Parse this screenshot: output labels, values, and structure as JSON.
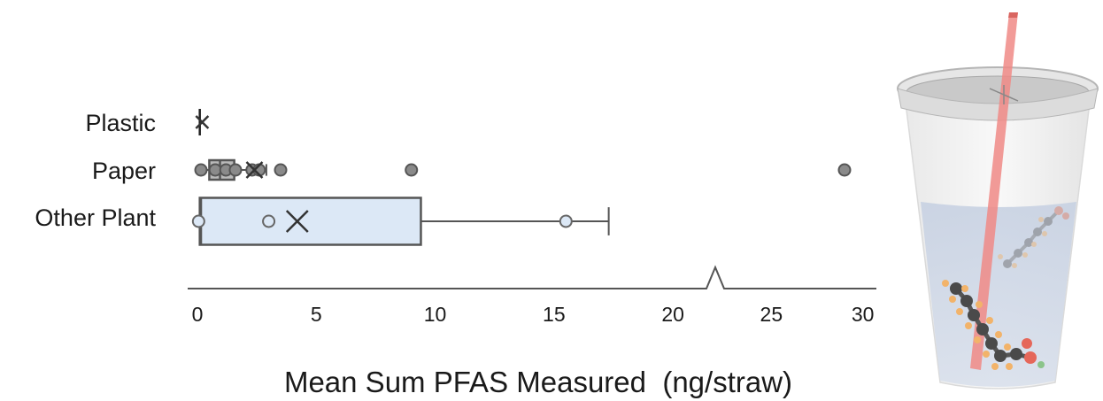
{
  "chart_data": {
    "type": "box",
    "xlabel": "Mean Sum PFAS Measured  (ng/straw)",
    "axis_break": [
      21,
      23
    ],
    "x_segments": [
      {
        "domain": [
          0,
          21
        ],
        "ticks": [
          0,
          5,
          10,
          15,
          20
        ]
      },
      {
        "domain": [
          23,
          30.5
        ],
        "ticks": [
          25,
          30
        ]
      }
    ],
    "colors": {
      "plastic_box": "#ffffff",
      "paper_box": "#b9b9b9",
      "other_plant_box": "#dce8f6",
      "filled_point": "#8a8a8a",
      "hollow_point": "#dce8f6",
      "outline": "#555555",
      "cup_liquid": "#c9d4e6",
      "straw": "#f08a86"
    },
    "series": [
      {
        "name": "Plastic",
        "box": {
          "min": 0.1,
          "q1": 0.1,
          "median": 0.1,
          "q3": 0.1,
          "max": 0.1
        },
        "mean": 0.2,
        "points": [],
        "point_style": "filled"
      },
      {
        "name": "Paper",
        "box": {
          "min": 0.1,
          "q1": 0.5,
          "median": 0.95,
          "q3": 1.55,
          "max": 2.9
        },
        "mean": 2.4,
        "points": [
          0.15,
          0.75,
          1.2,
          1.6,
          2.3,
          2.6,
          3.5,
          9.0,
          29.0
        ],
        "point_style": "filled"
      },
      {
        "name": "Other Plant",
        "box": {
          "min": 0.0,
          "q1": 0.1,
          "median": 0.15,
          "q3": 9.4,
          "max": 17.3
        },
        "mean": 4.2,
        "points": [
          0.05,
          3.0,
          15.5
        ],
        "point_style": "hollow"
      }
    ]
  },
  "illustration": {
    "icon": "cup-with-straw-and-pfas-molecule-icon"
  }
}
